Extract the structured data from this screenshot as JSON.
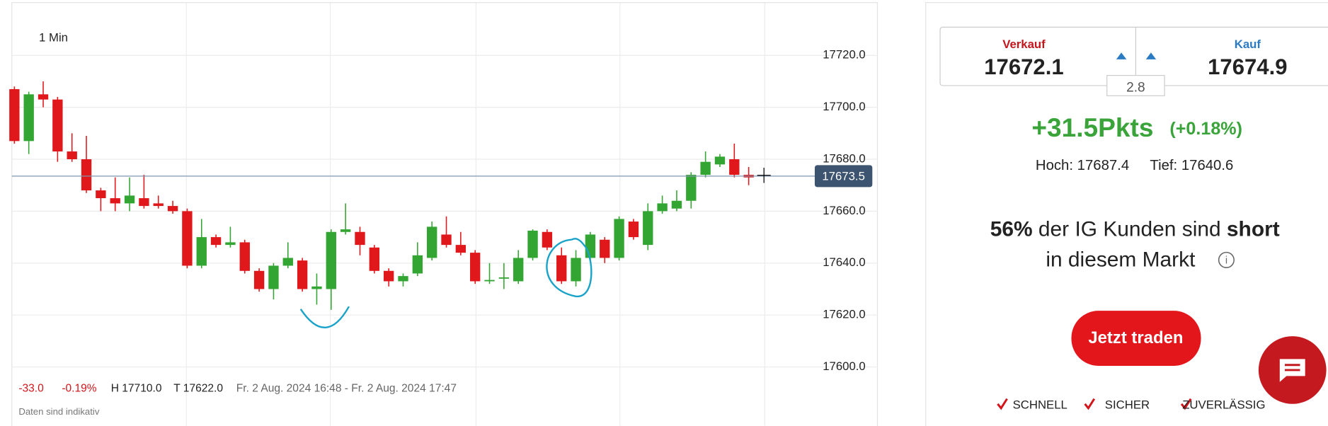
{
  "chart_data": {
    "type": "candlestick",
    "interval": "1 Min",
    "ylim": [
      17590,
      17740
    ],
    "yticks": [
      {
        "value": 17600,
        "label": "17600.0"
      },
      {
        "value": 17620,
        "label": "17620.0"
      },
      {
        "value": 17640,
        "label": "17640.0"
      },
      {
        "value": 17660,
        "label": "17660.0"
      },
      {
        "value": 17680,
        "label": "17680.0"
      },
      {
        "value": 17700,
        "label": "17700.0"
      },
      {
        "value": 17720,
        "label": "17720.0"
      }
    ],
    "grid": true,
    "up_color": "#33a532",
    "down_color": "#e0181c",
    "open": [
      17707,
      17687,
      17705,
      17703,
      17683,
      17680,
      17668,
      17665,
      17663,
      17665,
      17663,
      17662,
      17660,
      17639,
      17650,
      17647,
      17648,
      17637,
      17630,
      17639,
      17641,
      17630,
      17630,
      17652,
      17652,
      17646,
      17637,
      17633,
      17636,
      17642,
      17651,
      17647,
      17644,
      17633,
      17634,
      17633,
      17642,
      17652,
      17643,
      17633,
      17642,
      17649,
      17642,
      17656,
      17647,
      17660,
      17661,
      17664,
      17674,
      17678,
      17680,
      17674
    ],
    "high": [
      17708,
      17706,
      17710,
      17704,
      17690,
      17689,
      17669,
      17673,
      17673,
      17674,
      17666,
      17664,
      17661,
      17657,
      17651,
      17654,
      17649,
      17638,
      17640,
      17648,
      17642,
      17636,
      17653,
      17663,
      17654,
      17647,
      17638,
      17636,
      17648,
      17656,
      17658,
      17652,
      17645,
      17640,
      17640,
      17645,
      17653,
      17653,
      17646,
      17645,
      17652,
      17650,
      17658,
      17657,
      17663,
      17666,
      17668,
      17675,
      17683,
      17682,
      17686,
      17677
    ],
    "low": [
      17686,
      17682,
      17700,
      17679,
      17679,
      17667,
      17660,
      17660,
      17660,
      17661,
      17661,
      17659,
      17638,
      17638,
      17646,
      17646,
      17636,
      17629,
      17626,
      17638,
      17629,
      17624,
      17622,
      17651,
      17643,
      17636,
      17631,
      17631,
      17635,
      17641,
      17646,
      17643,
      17632,
      17632,
      17630,
      17632,
      17641,
      17645,
      17632,
      17631,
      17641,
      17640,
      17641,
      17649,
      17645,
      17659,
      17660,
      17661,
      17673,
      17677,
      17673,
      17670
    ],
    "close": [
      17687,
      17705,
      17703,
      17683,
      17680,
      17668,
      17665,
      17663,
      17666,
      17662,
      17662,
      17660,
      17639,
      17650,
      17647,
      17648,
      17637,
      17630,
      17639,
      17642,
      17630,
      17631,
      17652,
      17653,
      17647,
      17637,
      17633,
      17635,
      17643,
      17654,
      17647,
      17644,
      17633,
      17633.5,
      17634.5,
      17642,
      17652.5,
      17646,
      17633,
      17642,
      17651,
      17642,
      17657,
      17650,
      17660,
      17663,
      17664,
      17674,
      17679,
      17681,
      17674,
      17673
    ],
    "current_price": {
      "value": 17673.5,
      "label": "17673.5"
    },
    "stats": {
      "change": "-33.0",
      "change_pct": "-0.19%",
      "high": "H 17710.0",
      "low": "T 17622.0",
      "range": "Fr. 2 Aug. 2024 16:48 - Fr. 2 Aug. 2024 17:47"
    },
    "note": "Daten sind indikativ"
  },
  "panel": {
    "sell_label": "Verkauf",
    "sell": "17672.1",
    "buy_label": "Kauf",
    "buy": "17674.9",
    "spread": "2.8",
    "change": "+31.5Pkts",
    "change_pct": "(+0.18%)",
    "high": "Hoch: 17687.4",
    "low": "Tief: 17640.6",
    "sentiment_pct": "56%",
    "sentiment_text": "der IG Kunden sind",
    "sentiment_side": "short",
    "sentiment_text2": "in diesem Markt",
    "button": "Jetzt traden",
    "features": [
      "SCHNELL",
      "SICHER",
      "ZUVERLÄSSIG"
    ]
  }
}
